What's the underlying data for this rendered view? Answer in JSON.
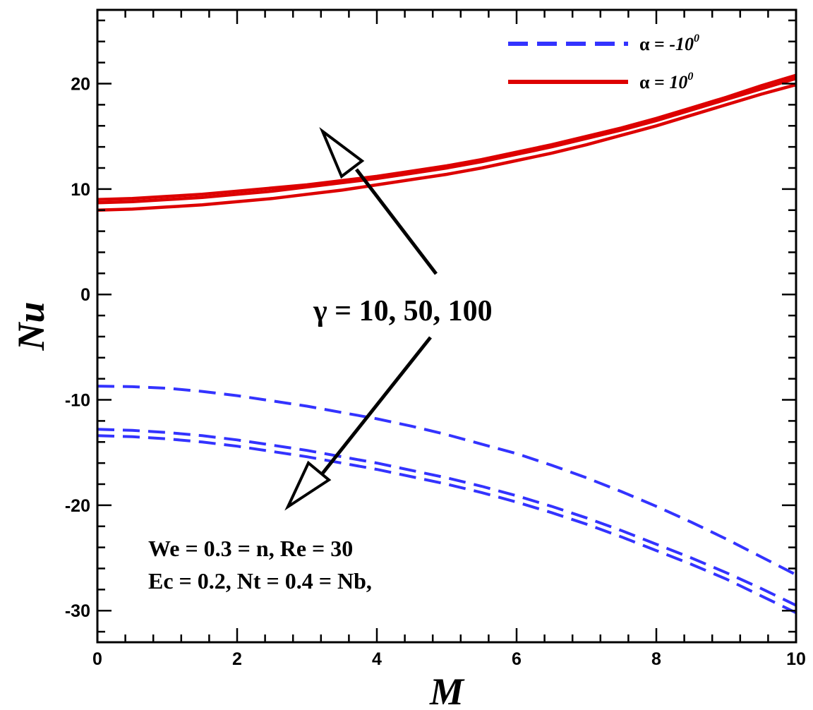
{
  "chart_data": {
    "type": "line",
    "title": "",
    "xlabel": "M",
    "ylabel": "Nu",
    "xlim": [
      0,
      10
    ],
    "ylim": [
      -33,
      27
    ],
    "xticks": [
      0,
      2,
      4,
      6,
      8,
      10
    ],
    "yticks": [
      -30,
      -20,
      -10,
      0,
      10,
      20
    ],
    "xtick_labels": [
      "0",
      "2",
      "4",
      "6",
      "8",
      "10"
    ],
    "ytick_labels": [
      "-30",
      "-20",
      "-10",
      "0",
      "10",
      "20"
    ],
    "grid": false,
    "legend_position": "top-right",
    "colors": {
      "alpha_neg": "#3333ff",
      "alpha_pos": "#dd0000",
      "arrow": "#000000"
    },
    "legend": [
      {
        "id": "neg",
        "label_prefix": "α = ",
        "label_value": "-10",
        "superscript": "0",
        "style": "dashed",
        "color": "#3333ff"
      },
      {
        "id": "pos",
        "label_prefix": "α = ",
        "label_value": "10",
        "superscript": "0",
        "style": "solid",
        "color": "#dd0000"
      }
    ],
    "x": [
      0,
      0.5,
      1,
      1.5,
      2,
      2.5,
      3,
      3.5,
      4,
      4.5,
      5,
      5.5,
      6,
      6.5,
      7,
      7.5,
      8,
      8.5,
      9,
      9.5,
      10
    ],
    "series": [
      {
        "group": "pos",
        "style": "solid",
        "color": "#dd0000",
        "y": [
          8.0,
          8.1,
          8.3,
          8.5,
          8.8,
          9.1,
          9.5,
          9.9,
          10.4,
          10.9,
          11.4,
          12.0,
          12.7,
          13.4,
          14.2,
          15.1,
          16.0,
          17.0,
          18.0,
          19.0,
          19.9
        ]
      },
      {
        "group": "pos",
        "style": "solid",
        "color": "#dd0000",
        "y": [
          8.7,
          8.8,
          9.0,
          9.2,
          9.5,
          9.8,
          10.2,
          10.6,
          11.0,
          11.5,
          12.0,
          12.6,
          13.3,
          14.0,
          14.8,
          15.6,
          16.5,
          17.5,
          18.5,
          19.5,
          20.5
        ]
      },
      {
        "group": "pos",
        "style": "solid",
        "color": "#dd0000",
        "y": [
          9.0,
          9.1,
          9.3,
          9.5,
          9.8,
          10.1,
          10.4,
          10.8,
          11.2,
          11.7,
          12.2,
          12.8,
          13.5,
          14.2,
          15.0,
          15.8,
          16.7,
          17.7,
          18.7,
          19.8,
          20.8
        ]
      },
      {
        "group": "neg",
        "style": "dashed",
        "color": "#3333ff",
        "y": [
          -8.7,
          -8.75,
          -8.9,
          -9.2,
          -9.6,
          -10.1,
          -10.6,
          -11.2,
          -11.8,
          -12.5,
          -13.3,
          -14.2,
          -15.1,
          -16.2,
          -17.4,
          -18.7,
          -20.1,
          -21.6,
          -23.2,
          -24.9,
          -26.6
        ]
      },
      {
        "group": "neg",
        "style": "dashed",
        "color": "#3333ff",
        "y": [
          -12.8,
          -12.9,
          -13.1,
          -13.4,
          -13.8,
          -14.3,
          -14.8,
          -15.4,
          -16.0,
          -16.7,
          -17.4,
          -18.2,
          -19.1,
          -20.1,
          -21.2,
          -22.4,
          -23.7,
          -25.0,
          -26.4,
          -27.9,
          -29.5
        ]
      },
      {
        "group": "neg",
        "style": "dashed",
        "color": "#3333ff",
        "y": [
          -13.4,
          -13.5,
          -13.7,
          -14.0,
          -14.4,
          -14.9,
          -15.4,
          -16.0,
          -16.6,
          -17.3,
          -18.0,
          -18.8,
          -19.7,
          -20.7,
          -21.8,
          -23.0,
          -24.3,
          -25.6,
          -27.0,
          -28.6,
          -30.2
        ]
      }
    ],
    "annotations": {
      "gamma_label": "γ = 10, 50, 100",
      "params_line1": "We = 0.3 = n, Re = 30",
      "params_line2": "Ec = 0.2, Nt = 0.4 = Nb,"
    }
  }
}
